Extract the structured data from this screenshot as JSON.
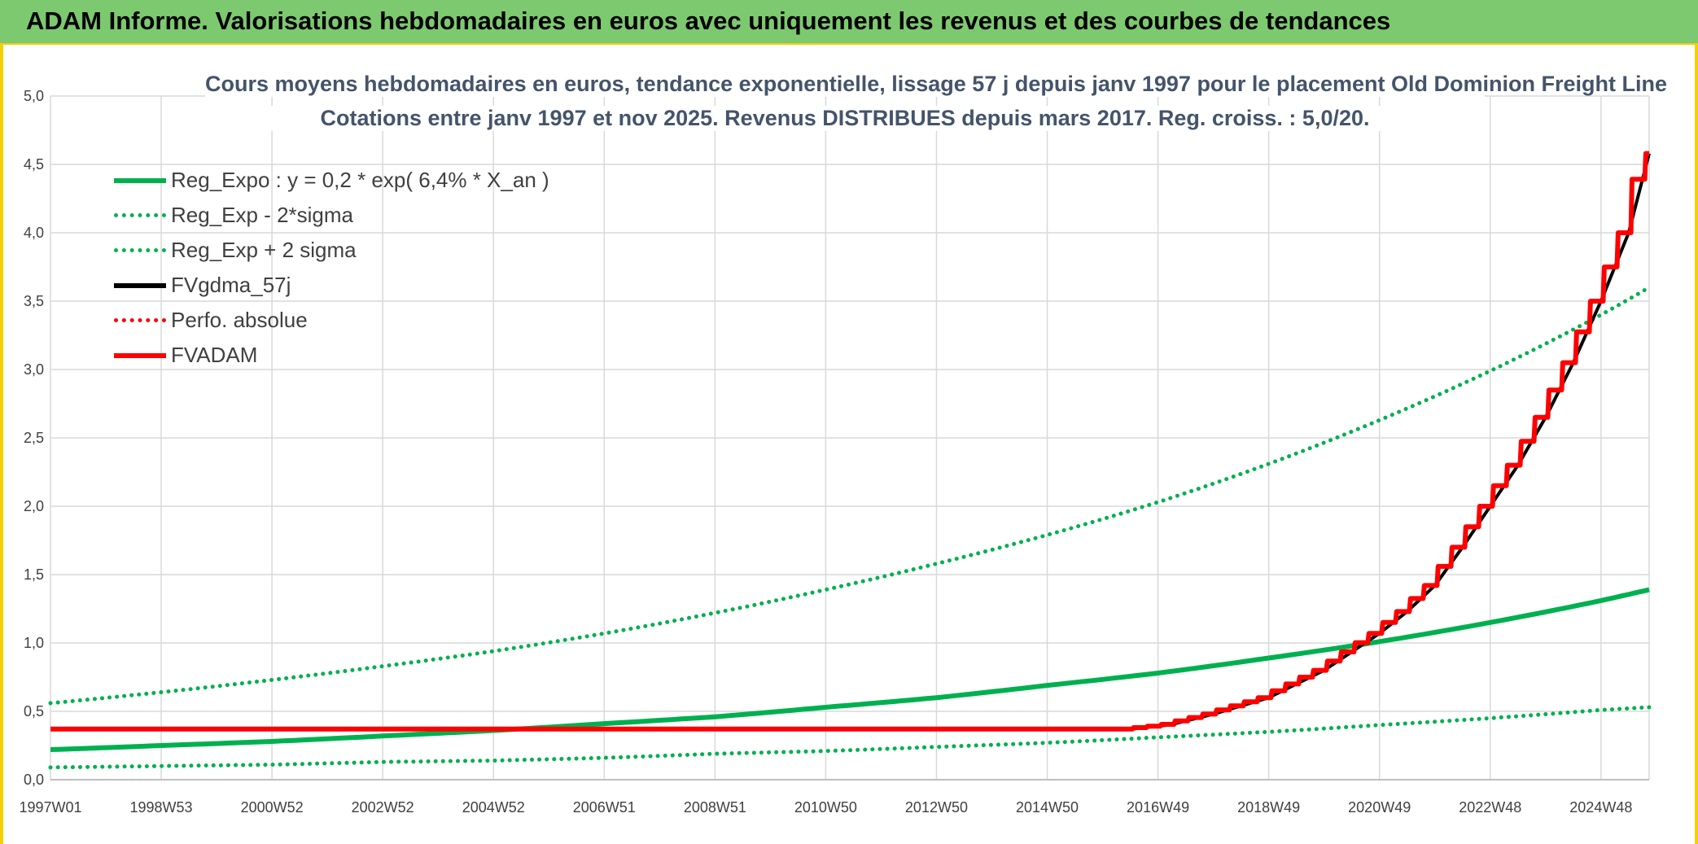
{
  "header": {
    "title": "ADAM Informe. Valorisations hebdomadaires en euros avec uniquement les revenus et des courbes de tendances"
  },
  "chart_data": {
    "type": "line",
    "title": "Cours moyens hebdomadaires en euros, tendance exponentielle, lissage 57 j depuis janv 1997 pour le placement Old Dominion Freight Line",
    "subtitle": "Cotations entre janv 1997 et nov 2025. Revenus DISTRIBUES depuis mars 2017. Reg. croiss. : 5,0/20.",
    "xlabel": "",
    "ylabel": "",
    "ylim": [
      0,
      5
    ],
    "xlim": [
      1997.0,
      2025.87
    ],
    "yticks": [
      "0,0",
      "0,5",
      "1,0",
      "1,5",
      "2,0",
      "2,5",
      "3,0",
      "3,5",
      "4,0",
      "4,5",
      "5,0"
    ],
    "xticks": [
      {
        "label": "1997W01",
        "x": 1997.0
      },
      {
        "label": "1998W53",
        "x": 1999.0
      },
      {
        "label": "2000W52",
        "x": 2001.0
      },
      {
        "label": "2002W52",
        "x": 2003.0
      },
      {
        "label": "2004W52",
        "x": 2005.0
      },
      {
        "label": "2006W51",
        "x": 2007.0
      },
      {
        "label": "2008W51",
        "x": 2009.0
      },
      {
        "label": "2010W50",
        "x": 2011.0
      },
      {
        "label": "2012W50",
        "x": 2013.0
      },
      {
        "label": "2014W50",
        "x": 2015.0
      },
      {
        "label": "2016W49",
        "x": 2017.0
      },
      {
        "label": "2018W49",
        "x": 2019.0
      },
      {
        "label": "2020W49",
        "x": 2021.0
      },
      {
        "label": "2022W48",
        "x": 2023.0
      },
      {
        "label": "2024W48",
        "x": 2025.0
      }
    ],
    "grid": true,
    "legend_position": "top-left",
    "series": [
      {
        "name": "Reg_Expo : y = 0,2 * exp( 6,4% *  X_an )",
        "color": "#00b050",
        "style": "solid",
        "x": [
          1997,
          1999,
          2001,
          2003,
          2005,
          2007,
          2009,
          2011,
          2013,
          2015,
          2017,
          2019,
          2021,
          2023,
          2025,
          2025.87
        ],
        "y": [
          0.22,
          0.25,
          0.28,
          0.32,
          0.36,
          0.41,
          0.46,
          0.53,
          0.6,
          0.69,
          0.78,
          0.89,
          1.01,
          1.15,
          1.31,
          1.39
        ]
      },
      {
        "name": "Reg_Exp - 2*sigma",
        "color": "#00b050",
        "style": "dotted",
        "x": [
          1997,
          1999,
          2001,
          2003,
          2005,
          2007,
          2009,
          2011,
          2013,
          2015,
          2017,
          2019,
          2021,
          2023,
          2025,
          2025.87
        ],
        "y": [
          0.09,
          0.1,
          0.11,
          0.13,
          0.14,
          0.16,
          0.19,
          0.21,
          0.24,
          0.27,
          0.31,
          0.35,
          0.4,
          0.45,
          0.51,
          0.53
        ]
      },
      {
        "name": "Reg_Exp + 2 sigma",
        "color": "#00b050",
        "style": "dotted",
        "x": [
          1997,
          1999,
          2001,
          2003,
          2005,
          2007,
          2009,
          2011,
          2013,
          2015,
          2017,
          2019,
          2021,
          2023,
          2025,
          2025.87
        ],
        "y": [
          0.56,
          0.64,
          0.73,
          0.83,
          0.94,
          1.07,
          1.22,
          1.39,
          1.58,
          1.79,
          2.03,
          2.31,
          2.63,
          2.99,
          3.4,
          3.6
        ]
      },
      {
        "name": "FVgdma_57j",
        "color": "#000000",
        "style": "solid",
        "x": [
          1997,
          2016.5,
          2017.2,
          2018.0,
          2019.0,
          2020.0,
          2021.0,
          2021.5,
          2022.0,
          2022.5,
          2023.0,
          2023.5,
          2024.0,
          2024.5,
          2025.0,
          2025.5,
          2025.87
        ],
        "y": [
          0.37,
          0.37,
          0.4,
          0.48,
          0.6,
          0.8,
          1.07,
          1.23,
          1.42,
          1.7,
          2.0,
          2.3,
          2.65,
          3.05,
          3.5,
          4.0,
          4.58
        ]
      },
      {
        "name": "Perfo. absolue",
        "color": "#ff0000",
        "style": "dotted",
        "x": [],
        "y": []
      },
      {
        "name": "FVADAM",
        "color": "#ff0000",
        "style": "solid-step",
        "x": [
          1997,
          2016.5,
          2017.2,
          2018.0,
          2019.0,
          2020.0,
          2021.0,
          2021.5,
          2022.0,
          2022.5,
          2023.0,
          2023.5,
          2024.0,
          2024.5,
          2025.0,
          2025.5,
          2025.87
        ],
        "y": [
          0.37,
          0.37,
          0.4,
          0.48,
          0.6,
          0.8,
          1.07,
          1.23,
          1.42,
          1.7,
          2.0,
          2.3,
          2.65,
          3.05,
          3.5,
          4.0,
          4.58
        ]
      }
    ]
  }
}
